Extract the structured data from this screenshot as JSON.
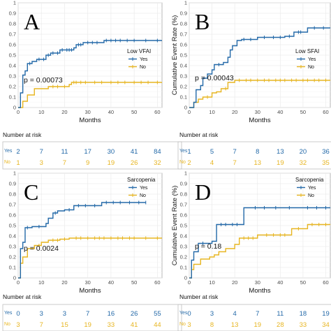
{
  "colors": {
    "yes": "#2369a8",
    "no": "#e7b521",
    "grid": "#ebebeb",
    "frame": "#a6a6a6"
  },
  "panels": [
    {
      "letter": "A",
      "legend_title": "Low VFAI",
      "p_text": "p = 0.00073",
      "xlabel": "Months",
      "ylabel": "",
      "risk_title": "Number at risk",
      "risk_yes": [
        "2",
        "7",
        "11",
        "17",
        "30",
        "41",
        "84"
      ],
      "risk_no": [
        "1",
        "3",
        "7",
        "9",
        "19",
        "26",
        "32"
      ]
    },
    {
      "letter": "B",
      "legend_title": "Low SFAI",
      "p_text": "p = 0.00043",
      "xlabel": "Months",
      "ylabel": "Cumulative Event Rate (%)",
      "risk_title": "Number at risk",
      "risk_yes": [
        "1",
        "5",
        "7",
        "8",
        "13",
        "20",
        "36"
      ],
      "risk_no": [
        "2",
        "4",
        "7",
        "13",
        "19",
        "32",
        "35"
      ]
    },
    {
      "letter": "C",
      "legend_title": "Sarcopenia",
      "p_text": "p = 0.0024",
      "xlabel": "Months",
      "ylabel": "",
      "risk_title": "Number at risk",
      "risk_yes": [
        "0",
        "3",
        "3",
        "7",
        "16",
        "26",
        "55"
      ],
      "risk_no": [
        "3",
        "7",
        "15",
        "19",
        "33",
        "41",
        "44"
      ]
    },
    {
      "letter": "D",
      "legend_title": "Sarcopenia",
      "p_text": "p = 0.18",
      "xlabel": "Months",
      "ylabel": "Cumulative Event Rate (%)",
      "risk_title": "Number at risk",
      "risk_yes": [
        "0",
        "3",
        "4",
        "7",
        "11",
        "18",
        "19"
      ],
      "risk_no": [
        "3",
        "8",
        "13",
        "19",
        "28",
        "33",
        "34"
      ]
    }
  ],
  "strata": [
    "Yes",
    "No"
  ],
  "chart_data": [
    {
      "type": "line",
      "title": "",
      "xlabel": "Months",
      "ylabel": "",
      "xlim": [
        0,
        62
      ],
      "ylim": [
        0,
        1.0
      ],
      "xticks": [
        0,
        10,
        20,
        30,
        40,
        50,
        60
      ],
      "yticks": [
        0,
        0.1,
        0.2,
        0.3,
        0.4,
        0.5,
        0.6,
        0.7,
        0.8,
        0.9,
        1.0
      ],
      "legend": "right",
      "series": [
        {
          "name": "Yes",
          "steps": [
            [
              0,
              0
            ],
            [
              1,
              0.14
            ],
            [
              2,
              0.31
            ],
            [
              3,
              0.35
            ],
            [
              4,
              0.42
            ],
            [
              6,
              0.44
            ],
            [
              8,
              0.46
            ],
            [
              12,
              0.5
            ],
            [
              14,
              0.52
            ],
            [
              18,
              0.55
            ],
            [
              24,
              0.57
            ],
            [
              25,
              0.6
            ],
            [
              28,
              0.62
            ],
            [
              36,
              0.62
            ],
            [
              37,
              0.64
            ],
            [
              62,
              0.64
            ]
          ],
          "censor": [
            5,
            9,
            11,
            13,
            15,
            17,
            19,
            21,
            22,
            23,
            26,
            27,
            30,
            32,
            34,
            38,
            40,
            42,
            44,
            47,
            50,
            55,
            60
          ]
        },
        {
          "name": "No",
          "steps": [
            [
              0,
              0
            ],
            [
              2,
              0.06
            ],
            [
              4,
              0.12
            ],
            [
              7,
              0.18
            ],
            [
              13,
              0.2
            ],
            [
              22,
              0.22
            ],
            [
              23,
              0.24
            ],
            [
              62,
              0.24
            ]
          ],
          "censor": [
            15,
            17,
            20,
            24,
            25,
            27,
            29,
            33,
            36,
            40,
            43,
            46,
            50,
            53,
            56,
            60
          ]
        }
      ]
    },
    {
      "type": "line",
      "title": "",
      "xlabel": "Months",
      "ylabel": "Cumulative Event Rate (%)",
      "xlim": [
        0,
        62
      ],
      "ylim": [
        0,
        1.0
      ],
      "xticks": [
        0,
        10,
        20,
        30,
        40,
        50,
        60
      ],
      "yticks": [
        0,
        0.1,
        0.2,
        0.3,
        0.4,
        0.5,
        0.6,
        0.7,
        0.8,
        0.9,
        1.0
      ],
      "legend": "right",
      "series": [
        {
          "name": "Yes",
          "steps": [
            [
              0,
              0
            ],
            [
              2,
              0.05
            ],
            [
              3,
              0.17
            ],
            [
              5,
              0.21
            ],
            [
              6,
              0.28
            ],
            [
              8,
              0.32
            ],
            [
              10,
              0.36
            ],
            [
              11,
              0.41
            ],
            [
              15,
              0.43
            ],
            [
              17,
              0.48
            ],
            [
              18,
              0.55
            ],
            [
              19,
              0.59
            ],
            [
              21,
              0.64
            ],
            [
              23,
              0.65
            ],
            [
              30,
              0.67
            ],
            [
              42,
              0.68
            ],
            [
              46,
              0.72
            ],
            [
              52,
              0.76
            ],
            [
              62,
              0.76
            ]
          ],
          "censor": [
            13,
            24,
            27,
            33,
            37,
            40,
            44,
            48,
            49,
            55,
            59
          ]
        },
        {
          "name": "No",
          "steps": [
            [
              0,
              0
            ],
            [
              2,
              0.05
            ],
            [
              4,
              0.08
            ],
            [
              6,
              0.1
            ],
            [
              10,
              0.14
            ],
            [
              12,
              0.15
            ],
            [
              14,
              0.18
            ],
            [
              17,
              0.24
            ],
            [
              20,
              0.26
            ],
            [
              62,
              0.26
            ]
          ],
          "censor": [
            8,
            16,
            22,
            25,
            27,
            30,
            33,
            35,
            38,
            40,
            42,
            45,
            47,
            50,
            52,
            55,
            57,
            60
          ]
        }
      ]
    },
    {
      "type": "line",
      "title": "",
      "xlabel": "Months",
      "ylabel": "",
      "xlim": [
        0,
        62
      ],
      "ylim": [
        0,
        1.0
      ],
      "xticks": [
        0,
        10,
        20,
        30,
        40,
        50,
        60
      ],
      "yticks": [
        0,
        0.1,
        0.2,
        0.3,
        0.4,
        0.5,
        0.6,
        0.7,
        0.8,
        0.9,
        1.0
      ],
      "legend": "top-right",
      "series": [
        {
          "name": "Yes",
          "steps": [
            [
              0,
              0
            ],
            [
              1,
              0.28
            ],
            [
              2,
              0.34
            ],
            [
              3,
              0.48
            ],
            [
              6,
              0.49
            ],
            [
              12,
              0.52
            ],
            [
              13,
              0.57
            ],
            [
              15,
              0.62
            ],
            [
              17,
              0.64
            ],
            [
              20,
              0.65
            ],
            [
              24,
              0.69
            ],
            [
              36,
              0.72
            ],
            [
              55,
              0.72
            ]
          ],
          "censor": [
            4,
            9,
            16,
            22,
            26,
            29,
            33,
            38,
            41,
            44,
            48,
            52,
            55
          ]
        },
        {
          "name": "No",
          "steps": [
            [
              0,
              0
            ],
            [
              1,
              0.14
            ],
            [
              2,
              0.2
            ],
            [
              4,
              0.28
            ],
            [
              7,
              0.31
            ],
            [
              10,
              0.34
            ],
            [
              13,
              0.36
            ],
            [
              18,
              0.37
            ],
            [
              22,
              0.38
            ],
            [
              62,
              0.38
            ]
          ],
          "censor": [
            9,
            15,
            17,
            20,
            25,
            27,
            30,
            33,
            35,
            37,
            40,
            43,
            45,
            48,
            50,
            55,
            60
          ]
        }
      ]
    },
    {
      "type": "line",
      "title": "",
      "xlabel": "Months",
      "ylabel": "Cumulative Event Rate (%)",
      "xlim": [
        0,
        62
      ],
      "ylim": [
        0,
        1.0
      ],
      "xticks": [
        0,
        10,
        20,
        30,
        40,
        50,
        60
      ],
      "yticks": [
        0,
        0.1,
        0.2,
        0.3,
        0.4,
        0.5,
        0.6,
        0.7,
        0.8,
        0.9,
        1.0
      ],
      "legend": "top-right",
      "series": [
        {
          "name": "Yes",
          "steps": [
            [
              0,
              0
            ],
            [
              1,
              0.17
            ],
            [
              2,
              0.25
            ],
            [
              4,
              0.33
            ],
            [
              10,
              0.35
            ],
            [
              12,
              0.51
            ],
            [
              24,
              0.67
            ],
            [
              62,
              0.67
            ]
          ],
          "censor": [
            6,
            14,
            16,
            19,
            21,
            29,
            33,
            38,
            44,
            52,
            56,
            60
          ]
        },
        {
          "name": "No",
          "steps": [
            [
              0,
              0
            ],
            [
              1,
              0.08
            ],
            [
              2,
              0.13
            ],
            [
              5,
              0.18
            ],
            [
              9,
              0.2
            ],
            [
              11,
              0.22
            ],
            [
              13,
              0.25
            ],
            [
              16,
              0.28
            ],
            [
              20,
              0.32
            ],
            [
              22,
              0.38
            ],
            [
              30,
              0.41
            ],
            [
              45,
              0.47
            ],
            [
              52,
              0.51
            ],
            [
              62,
              0.51
            ]
          ],
          "censor": [
            24,
            26,
            28,
            34,
            37,
            40,
            42,
            48,
            54,
            57,
            60
          ]
        }
      ]
    }
  ]
}
